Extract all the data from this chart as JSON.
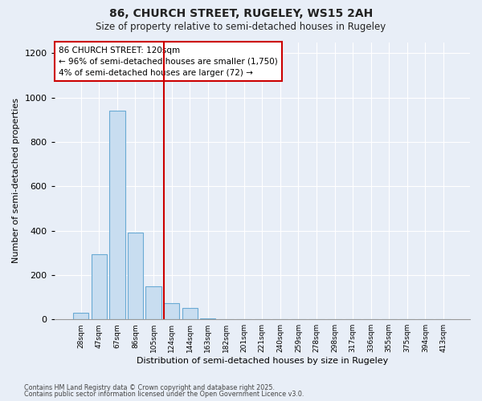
{
  "title1": "86, CHURCH STREET, RUGELEY, WS15 2AH",
  "title2": "Size of property relative to semi-detached houses in Rugeley",
  "xlabel": "Distribution of semi-detached houses by size in Rugeley",
  "ylabel": "Number of semi-detached properties",
  "categories": [
    "28sqm",
    "47sqm",
    "67sqm",
    "86sqm",
    "105sqm",
    "124sqm",
    "144sqm",
    "163sqm",
    "182sqm",
    "201sqm",
    "221sqm",
    "240sqm",
    "259sqm",
    "278sqm",
    "298sqm",
    "317sqm",
    "336sqm",
    "355sqm",
    "375sqm",
    "394sqm",
    "413sqm"
  ],
  "bar_values": [
    30,
    295,
    940,
    390,
    150,
    72,
    50,
    3,
    0,
    0,
    0,
    0,
    0,
    0,
    0,
    0,
    0,
    0,
    0,
    0,
    0
  ],
  "bar_color": "#c8ddf0",
  "bar_edge_color": "#6aaad4",
  "vline_color": "#cc0000",
  "annotation_text": "86 CHURCH STREET: 120sqm\n← 96% of semi-detached houses are smaller (1,750)\n4% of semi-detached houses are larger (72) →",
  "annotation_box_color": "#cc0000",
  "ylim": [
    0,
    1250
  ],
  "yticks": [
    0,
    200,
    400,
    600,
    800,
    1000,
    1200
  ],
  "footer1": "Contains HM Land Registry data © Crown copyright and database right 2025.",
  "footer2": "Contains public sector information licensed under the Open Government Licence v3.0.",
  "bg_color": "#e8eef7",
  "plot_bg_color": "#e8eef7",
  "grid_color": "#ffffff",
  "vline_bar_index": 5
}
